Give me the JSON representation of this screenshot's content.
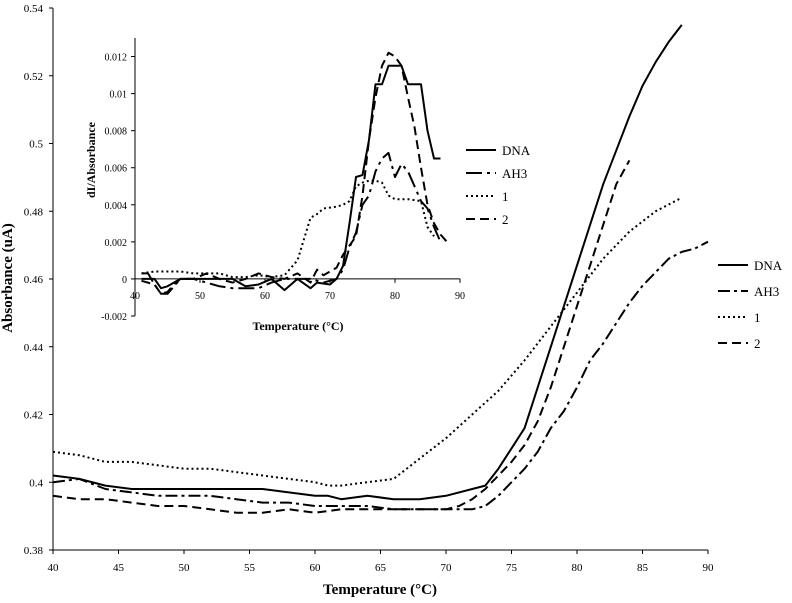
{
  "chart_data": [
    {
      "type": "line",
      "xlabel": "Temperature (°C)",
      "ylabel": "Absorbance (uA)",
      "xlim": [
        40,
        90
      ],
      "ylim": [
        0.38,
        0.54
      ],
      "x_ticks": [
        "40",
        "45",
        "50",
        "55",
        "60",
        "65",
        "70",
        "75",
        "80",
        "85",
        "90"
      ],
      "y_ticks": [
        "0.38",
        "0.4",
        "0.42",
        "0.44",
        "0.46",
        "0.48",
        "0.5",
        "0.52",
        "0.54"
      ],
      "grid": false,
      "legend_position": "right",
      "series": [
        {
          "name": "DNA",
          "style": "solid",
          "points": [
            [
              40,
              0.402
            ],
            [
              42,
              0.401
            ],
            [
              44,
              0.399
            ],
            [
              46,
              0.398
            ],
            [
              48,
              0.398
            ],
            [
              50,
              0.398
            ],
            [
              52,
              0.398
            ],
            [
              54,
              0.398
            ],
            [
              56,
              0.398
            ],
            [
              58,
              0.397
            ],
            [
              60,
              0.396
            ],
            [
              61,
              0.396
            ],
            [
              62,
              0.395
            ],
            [
              64,
              0.396
            ],
            [
              66,
              0.395
            ],
            [
              68,
              0.395
            ],
            [
              70,
              0.396
            ],
            [
              72,
              0.398
            ],
            [
              73,
              0.399
            ],
            [
              74,
              0.404
            ],
            [
              75,
              0.41
            ],
            [
              76,
              0.416
            ],
            [
              77,
              0.428
            ],
            [
              78,
              0.44
            ],
            [
              79,
              0.452
            ],
            [
              80,
              0.464
            ],
            [
              81,
              0.476
            ],
            [
              82,
              0.488
            ],
            [
              83,
              0.498
            ],
            [
              84,
              0.508
            ],
            [
              85,
              0.517
            ],
            [
              86,
              0.524
            ],
            [
              87,
              0.53
            ],
            [
              88,
              0.535
            ]
          ]
        },
        {
          "name": "AH3",
          "style": "dash-dot",
          "points": [
            [
              40,
              0.4
            ],
            [
              42,
              0.401
            ],
            [
              44,
              0.398
            ],
            [
              46,
              0.397
            ],
            [
              48,
              0.396
            ],
            [
              50,
              0.396
            ],
            [
              52,
              0.396
            ],
            [
              54,
              0.395
            ],
            [
              56,
              0.394
            ],
            [
              58,
              0.394
            ],
            [
              60,
              0.393
            ],
            [
              62,
              0.393
            ],
            [
              64,
              0.393
            ],
            [
              66,
              0.392
            ],
            [
              68,
              0.392
            ],
            [
              70,
              0.392
            ],
            [
              72,
              0.392
            ],
            [
              73,
              0.393
            ],
            [
              74,
              0.396
            ],
            [
              75,
              0.4
            ],
            [
              76,
              0.404
            ],
            [
              77,
              0.409
            ],
            [
              78,
              0.416
            ],
            [
              79,
              0.421
            ],
            [
              80,
              0.428
            ],
            [
              81,
              0.436
            ],
            [
              82,
              0.441
            ],
            [
              83,
              0.447
            ],
            [
              84,
              0.453
            ],
            [
              85,
              0.458
            ],
            [
              86,
              0.462
            ],
            [
              87,
              0.466
            ],
            [
              88,
              0.468
            ],
            [
              89,
              0.469
            ],
            [
              90,
              0.471
            ]
          ]
        },
        {
          "name": "1",
          "style": "dotted",
          "points": [
            [
              40,
              0.409
            ],
            [
              42,
              0.408
            ],
            [
              44,
              0.406
            ],
            [
              46,
              0.406
            ],
            [
              48,
              0.405
            ],
            [
              50,
              0.404
            ],
            [
              52,
              0.404
            ],
            [
              54,
              0.403
            ],
            [
              56,
              0.402
            ],
            [
              58,
              0.401
            ],
            [
              60,
              0.4
            ],
            [
              61,
              0.399
            ],
            [
              62,
              0.399
            ],
            [
              64,
              0.4
            ],
            [
              66,
              0.401
            ],
            [
              68,
              0.407
            ],
            [
              70,
              0.413
            ],
            [
              72,
              0.42
            ],
            [
              74,
              0.427
            ],
            [
              76,
              0.436
            ],
            [
              78,
              0.446
            ],
            [
              80,
              0.456
            ],
            [
              81,
              0.461
            ],
            [
              82,
              0.466
            ],
            [
              83,
              0.47
            ],
            [
              84,
              0.474
            ],
            [
              85,
              0.477
            ],
            [
              86,
              0.48
            ],
            [
              87,
              0.482
            ],
            [
              88,
              0.484
            ]
          ]
        },
        {
          "name": "2",
          "style": "dashed",
          "points": [
            [
              40,
              0.396
            ],
            [
              42,
              0.395
            ],
            [
              44,
              0.395
            ],
            [
              46,
              0.394
            ],
            [
              48,
              0.393
            ],
            [
              50,
              0.393
            ],
            [
              52,
              0.392
            ],
            [
              54,
              0.391
            ],
            [
              56,
              0.391
            ],
            [
              58,
              0.392
            ],
            [
              60,
              0.391
            ],
            [
              62,
              0.392
            ],
            [
              64,
              0.392
            ],
            [
              66,
              0.392
            ],
            [
              68,
              0.392
            ],
            [
              70,
              0.392
            ],
            [
              71,
              0.393
            ],
            [
              72,
              0.395
            ],
            [
              73,
              0.398
            ],
            [
              74,
              0.402
            ],
            [
              75,
              0.406
            ],
            [
              76,
              0.411
            ],
            [
              77,
              0.418
            ],
            [
              78,
              0.428
            ],
            [
              79,
              0.44
            ],
            [
              80,
              0.452
            ],
            [
              81,
              0.464
            ],
            [
              82,
              0.476
            ],
            [
              83,
              0.488
            ],
            [
              84,
              0.495
            ]
          ]
        }
      ]
    },
    {
      "type": "line",
      "xlabel": "Temperature (°C)",
      "ylabel": "dI/Absorbance",
      "xlim": [
        40,
        90
      ],
      "ylim": [
        -0.002,
        0.013
      ],
      "x_ticks": [
        "40",
        "50",
        "60",
        "70",
        "80",
        "90"
      ],
      "y_ticks": [
        "-0.002",
        "0",
        "0.002",
        "0.004",
        "0.006",
        "0.008",
        "0.01",
        "0.012"
      ],
      "grid": false,
      "legend_position": "right",
      "series": [
        {
          "name": "DNA",
          "style": "solid",
          "points": [
            [
              41,
              0.0
            ],
            [
              43,
              0.0
            ],
            [
              44,
              -0.0005
            ],
            [
              45,
              -0.0004
            ],
            [
              47,
              0.0
            ],
            [
              49,
              0.0
            ],
            [
              51,
              0.0
            ],
            [
              53,
              0.0
            ],
            [
              55,
              0.0
            ],
            [
              57,
              -0.0004
            ],
            [
              59,
              -0.0003
            ],
            [
              61,
              0.0
            ],
            [
              62,
              -0.0003
            ],
            [
              63,
              -0.0006
            ],
            [
              65,
              0.0
            ],
            [
              67,
              -0.0005
            ],
            [
              68,
              -0.0002
            ],
            [
              70,
              -0.0003
            ],
            [
              71,
              0.0
            ],
            [
              72,
              0.0007
            ],
            [
              73,
              0.003
            ],
            [
              74,
              0.0055
            ],
            [
              75,
              0.0056
            ],
            [
              76,
              0.0075
            ],
            [
              77,
              0.0105
            ],
            [
              78,
              0.0105
            ],
            [
              79,
              0.0115
            ],
            [
              80,
              0.0115
            ],
            [
              81,
              0.0115
            ],
            [
              82,
              0.0105
            ],
            [
              84,
              0.0105
            ],
            [
              85,
              0.008
            ],
            [
              86,
              0.0065
            ],
            [
              87,
              0.0065
            ]
          ]
        },
        {
          "name": "AH3",
          "style": "long-dash-dot",
          "points": [
            [
              41,
              0.0003
            ],
            [
              42,
              0.0003
            ],
            [
              43,
              -0.0003
            ],
            [
              44,
              -0.0008
            ],
            [
              45,
              -0.0008
            ],
            [
              47,
              0.0
            ],
            [
              49,
              0.0
            ],
            [
              51,
              -0.0002
            ],
            [
              53,
              -0.0004
            ],
            [
              55,
              -0.0005
            ],
            [
              57,
              -0.0005
            ],
            [
              59,
              -0.0005
            ],
            [
              61,
              -0.0002
            ],
            [
              63,
              0.0
            ],
            [
              65,
              0.0
            ],
            [
              67,
              0.0
            ],
            [
              69,
              -0.0002
            ],
            [
              71,
              0.0
            ],
            [
              72,
              0.0005
            ],
            [
              73,
              0.0017
            ],
            [
              74,
              0.0025
            ],
            [
              75,
              0.004
            ],
            [
              76,
              0.0045
            ],
            [
              77,
              0.0058
            ],
            [
              78,
              0.0065
            ],
            [
              79,
              0.0068
            ],
            [
              80,
              0.0055
            ],
            [
              81,
              0.0062
            ],
            [
              82,
              0.0058
            ],
            [
              84,
              0.0042
            ],
            [
              85,
              0.0038
            ],
            [
              86,
              0.0028
            ],
            [
              87,
              0.002
            ]
          ]
        },
        {
          "name": "1",
          "style": "dotted",
          "points": [
            [
              41,
              0.0003
            ],
            [
              43,
              0.0004
            ],
            [
              45,
              0.0004
            ],
            [
              47,
              0.0004
            ],
            [
              49,
              0.0003
            ],
            [
              51,
              0.0003
            ],
            [
              53,
              0.0003
            ],
            [
              55,
              0.0001
            ],
            [
              57,
              0.0001
            ],
            [
              59,
              0.0002
            ],
            [
              61,
              0.0001
            ],
            [
              63,
              0.0002
            ],
            [
              65,
              0.001
            ],
            [
              67,
              0.0033
            ],
            [
              68,
              0.0035
            ],
            [
              69,
              0.0038
            ],
            [
              71,
              0.0039
            ],
            [
              72,
              0.004
            ],
            [
              73,
              0.0042
            ],
            [
              74,
              0.005
            ],
            [
              75,
              0.0052
            ],
            [
              76,
              0.0053
            ],
            [
              77,
              0.0053
            ],
            [
              78,
              0.0052
            ],
            [
              79,
              0.0045
            ],
            [
              80,
              0.0043
            ],
            [
              82,
              0.0043
            ],
            [
              84,
              0.0042
            ],
            [
              85,
              0.0028
            ],
            [
              86,
              0.0023
            ]
          ]
        },
        {
          "name": "2",
          "style": "dashed",
          "points": [
            [
              41,
              -0.0001
            ],
            [
              43,
              -0.0003
            ],
            [
              44,
              -0.0008
            ],
            [
              45,
              -0.0007
            ],
            [
              46,
              -0.0003
            ],
            [
              47,
              0.0
            ],
            [
              49,
              0.0
            ],
            [
              51,
              0.0003
            ],
            [
              53,
              0.0
            ],
            [
              55,
              -0.0002
            ],
            [
              57,
              0.0
            ],
            [
              59,
              0.0003
            ],
            [
              61,
              0.0001
            ],
            [
              63,
              0.0
            ],
            [
              65,
              0.0003
            ],
            [
              67,
              -0.0002
            ],
            [
              68,
              0.0005
            ],
            [
              69,
              0.0002
            ],
            [
              71,
              0.0006
            ],
            [
              72,
              0.0013
            ],
            [
              73,
              0.0018
            ],
            [
              74,
              0.0023
            ],
            [
              75,
              0.0045
            ],
            [
              76,
              0.0075
            ],
            [
              77,
              0.0098
            ],
            [
              78,
              0.0115
            ],
            [
              79,
              0.0122
            ],
            [
              80,
              0.012
            ],
            [
              81,
              0.0115
            ],
            [
              82,
              0.0098
            ],
            [
              83,
              0.0082
            ],
            [
              84,
              0.006
            ],
            [
              85,
              0.004
            ],
            [
              86,
              0.003
            ],
            [
              87,
              0.0024
            ],
            [
              88,
              0.002
            ]
          ]
        }
      ]
    }
  ]
}
